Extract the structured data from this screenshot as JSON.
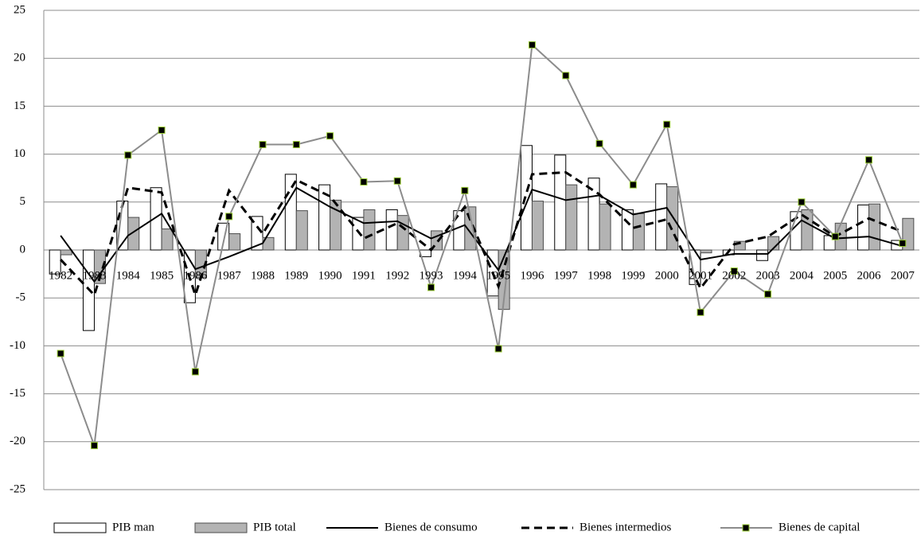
{
  "chart_data": {
    "type": "bar",
    "categories": [
      "1982",
      "1983",
      "1984",
      "1985",
      "1986",
      "1987",
      "1988",
      "1989",
      "1990",
      "1991",
      "1992",
      "1993",
      "1994",
      "1995",
      "1996",
      "1997",
      "1998",
      "1999",
      "2000",
      "2001",
      "2002",
      "2003",
      "2004",
      "2005",
      "2006",
      "2007"
    ],
    "ylim": [
      -25,
      25
    ],
    "yticks": [
      -25,
      -20,
      -15,
      -10,
      -5,
      0,
      5,
      10,
      15,
      20,
      25
    ],
    "grid": true,
    "legend": "bottom",
    "series": [
      {
        "name": "PIB man",
        "type": "bar",
        "color": "#ffffff",
        "edge_color": "#000000",
        "values": [
          -2.5,
          -8.4,
          5.1,
          6.5,
          -5.5,
          2.8,
          3.5,
          7.9,
          6.8,
          3.4,
          4.2,
          -0.7,
          4.1,
          -4.8,
          10.9,
          9.9,
          7.5,
          4.2,
          6.9,
          -3.6,
          -0.5,
          -1.1,
          4.0,
          1.5,
          4.7,
          1.0
        ]
      },
      {
        "name": "PIB total",
        "type": "bar",
        "color": "#b3b3b3",
        "edge_color": "#4d4d4d",
        "values": [
          -0.5,
          -3.5,
          3.4,
          2.2,
          -2.9,
          1.7,
          1.3,
          4.1,
          5.2,
          4.2,
          3.6,
          2.0,
          4.5,
          -6.2,
          5.1,
          6.8,
          4.8,
          3.8,
          6.6,
          -0.3,
          0.9,
          1.4,
          4.2,
          2.8,
          4.8,
          3.3
        ]
      },
      {
        "name": "Bienes de consumo",
        "type": "line",
        "color": "#000000",
        "line_style": "solid",
        "values": [
          1.5,
          -3.3,
          1.5,
          3.8,
          -2.0,
          -0.7,
          0.7,
          6.5,
          4.5,
          2.8,
          3.0,
          1.2,
          2.6,
          -2.1,
          6.3,
          5.2,
          5.7,
          3.7,
          4.4,
          -1.0,
          -0.4,
          -0.4,
          3.1,
          1.2,
          1.4,
          0.4
        ]
      },
      {
        "name": "Bienes intermedios",
        "type": "line",
        "color": "#000000",
        "line_style": "dashed",
        "values": [
          -1.0,
          -4.7,
          6.5,
          6.0,
          -4.7,
          6.2,
          1.7,
          7.3,
          5.6,
          1.2,
          2.8,
          0.0,
          4.5,
          -3.8,
          7.9,
          8.1,
          5.8,
          2.3,
          3.2,
          -4.0,
          0.6,
          1.4,
          3.7,
          1.4,
          3.3,
          1.9
        ]
      },
      {
        "name": "Bienes de capital",
        "type": "line",
        "color": "#8c8c8c",
        "line_style": "solid",
        "marker": "square",
        "marker_color": "#000000",
        "marker_edge": "#9acd32",
        "values": [
          -10.8,
          -20.4,
          9.9,
          12.5,
          -12.7,
          3.5,
          11.0,
          11.0,
          11.9,
          7.1,
          7.2,
          -3.9,
          6.2,
          -10.3,
          21.4,
          18.2,
          11.1,
          6.8,
          13.1,
          -6.5,
          -2.2,
          -4.6,
          5.0,
          1.4,
          9.4,
          0.7
        ]
      }
    ]
  }
}
